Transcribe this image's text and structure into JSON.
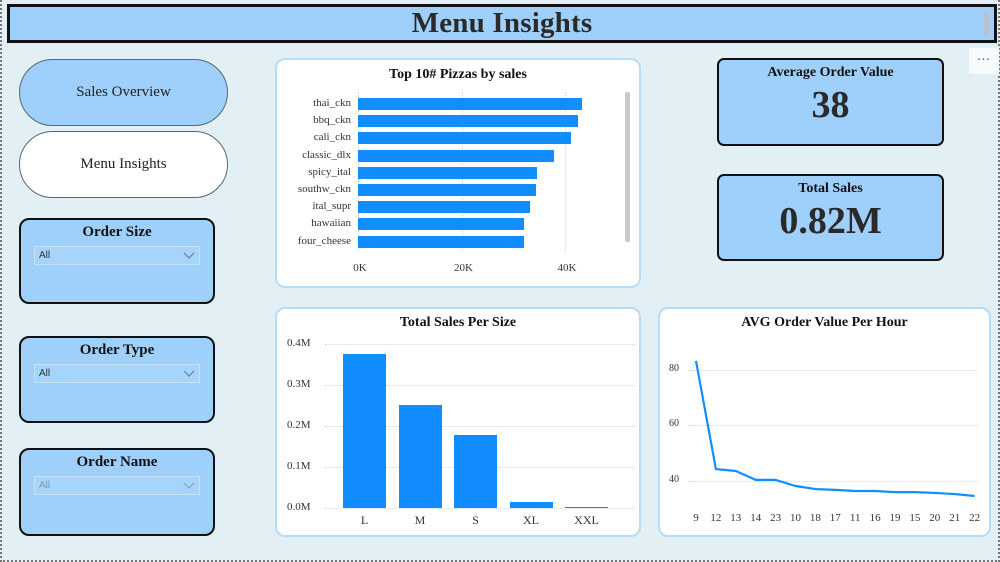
{
  "header": {
    "title": "Menu Insights",
    "more_options_icon": "ellipsis-icon",
    "more_options_label": "..."
  },
  "nav": {
    "buttons": [
      {
        "label": "Sales Overview",
        "active": false
      },
      {
        "label": "Menu Insights",
        "active": true
      }
    ]
  },
  "slicers": [
    {
      "title": "Order Size",
      "value": "All",
      "icon": "chevron-down-icon",
      "disabled": false
    },
    {
      "title": "Order Type",
      "value": "All",
      "icon": "chevron-down-icon",
      "disabled": false
    },
    {
      "title": "Order Name",
      "value": "All",
      "icon": "chevron-down-icon",
      "disabled": true
    }
  ],
  "kpis": [
    {
      "label": "Average Order Value",
      "value": "38"
    },
    {
      "label": "Total Sales",
      "value": "0.82M"
    }
  ],
  "colors": {
    "accent": "#118dff",
    "panel": "#9fd0fb",
    "background": "#e2f0f6"
  },
  "chart_data": [
    {
      "type": "bar",
      "orientation": "horizontal",
      "title": "Top 10# Pizzas by sales",
      "categories": [
        "thai_ckn",
        "bbq_ckn",
        "cali_ckn",
        "classic_dlx",
        "spicy_ital",
        "southw_ckn",
        "ital_supr",
        "hawaiian",
        "four_cheese"
      ],
      "values": [
        43300,
        42500,
        41200,
        37900,
        34600,
        34400,
        33300,
        32100,
        32100
      ],
      "x_ticks": [
        "0K",
        "20K",
        "40K"
      ],
      "xlim": [
        0,
        50000
      ],
      "xlabel": "",
      "ylabel": "",
      "grid": true,
      "scrollable": true
    },
    {
      "type": "bar",
      "title": "Total Sales Per Size",
      "categories": [
        "L",
        "M",
        "S",
        "XL",
        "XXL"
      ],
      "values": [
        375000,
        251000,
        178000,
        15000,
        1000
      ],
      "y_ticks": [
        "0.0M",
        "0.1M",
        "0.2M",
        "0.3M",
        "0.4M"
      ],
      "ylim": [
        0,
        400000
      ],
      "xlabel": "",
      "ylabel": "",
      "grid": true
    },
    {
      "type": "line",
      "title": "AVG Order Value Per Hour",
      "categories": [
        "9",
        "12",
        "13",
        "14",
        "23",
        "10",
        "18",
        "17",
        "11",
        "16",
        "19",
        "15",
        "20",
        "21",
        "22"
      ],
      "values": [
        83.2,
        44.3,
        43.6,
        40.4,
        40.4,
        38.2,
        37.1,
        36.8,
        36.4,
        36.4,
        36.0,
        36.0,
        35.7,
        35.3,
        34.6
      ],
      "y_ticks": [
        "40",
        "60",
        "80"
      ],
      "ylim": [
        30,
        90
      ],
      "xlabel": "",
      "ylabel": "",
      "grid": true
    }
  ]
}
